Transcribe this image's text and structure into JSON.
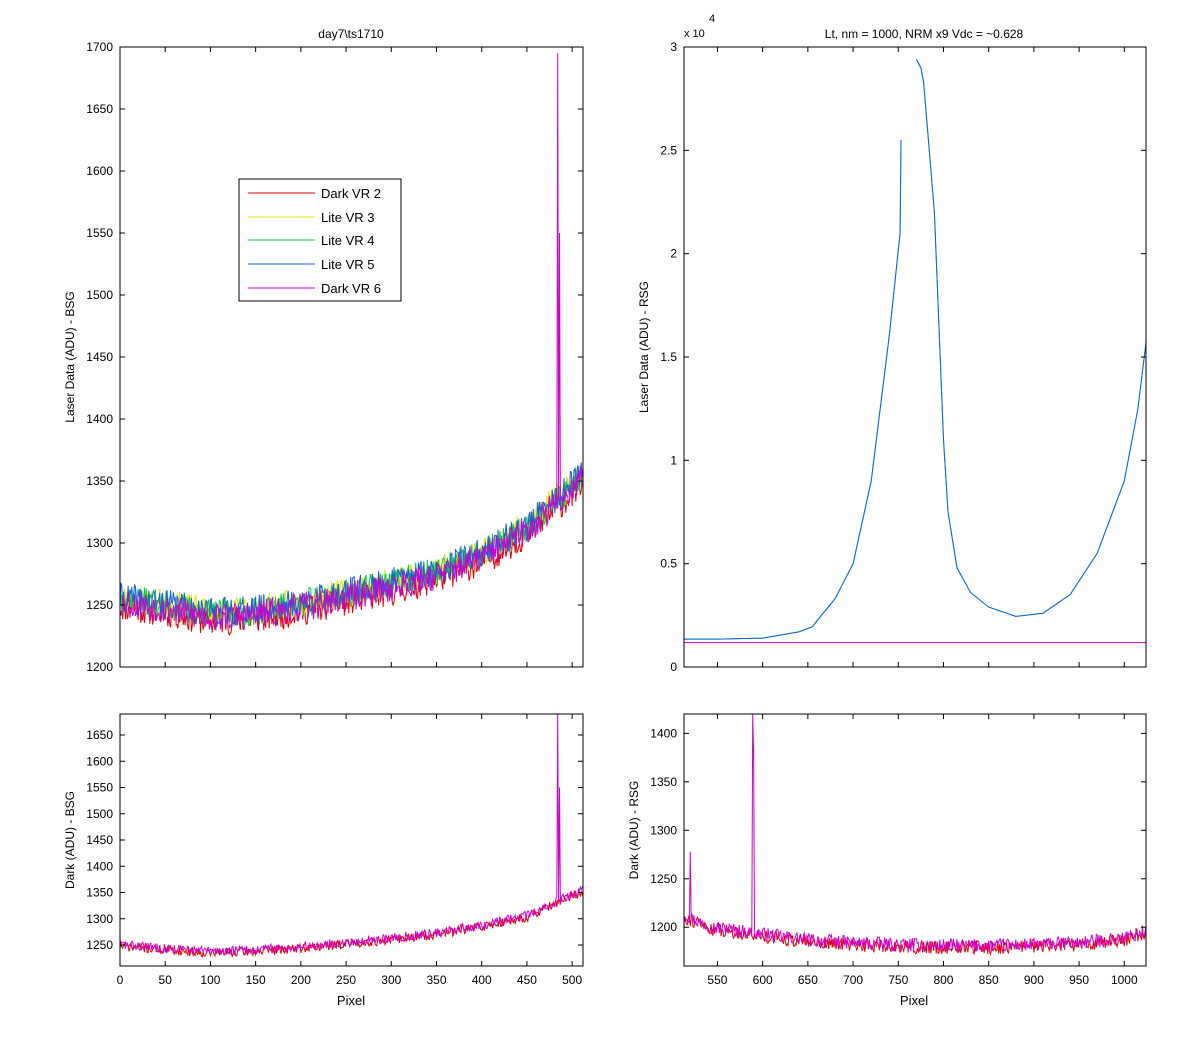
{
  "chart_data": [
    {
      "id": "top-left",
      "type": "line",
      "title": "day7\\ts1710",
      "xlabel": "",
      "ylabel": "Laser Data (ADU) - BSG",
      "xlim": [
        0,
        512
      ],
      "ylim": [
        1200,
        1700
      ],
      "xticks": [
        0,
        50,
        100,
        150,
        200,
        250,
        300,
        350,
        400,
        450,
        500
      ],
      "xticks_labeled": false,
      "yticks": [
        1200,
        1250,
        1300,
        1350,
        1400,
        1450,
        1500,
        1550,
        1600,
        1650,
        1700
      ],
      "exponent_label": "",
      "legend": {
        "placement": "upper-left-center",
        "entries": [
          "Dark VR 2",
          "Lite VR 3",
          "Lite VR 4",
          "Lite VR 5",
          "Dark VR 6"
        ]
      },
      "series": [
        {
          "name": "Dark VR 2",
          "color": "#e60000",
          "noise": 12,
          "offset": -3,
          "seed": 11,
          "points": [
            [
              0,
              1252
            ],
            [
              50,
              1247
            ],
            [
              100,
              1240
            ],
            [
              150,
              1242
            ],
            [
              200,
              1248
            ],
            [
              250,
              1256
            ],
            [
              300,
              1264
            ],
            [
              350,
              1274
            ],
            [
              400,
              1288
            ],
            [
              450,
              1310
            ],
            [
              500,
              1343
            ],
            [
              512,
              1354
            ]
          ]
        },
        {
          "name": "Lite VR 3",
          "color": "#e6e600",
          "noise": 12,
          "offset": 4,
          "seed": 23,
          "points": [
            [
              0,
              1252
            ],
            [
              50,
              1247
            ],
            [
              100,
              1240
            ],
            [
              150,
              1242
            ],
            [
              200,
              1248
            ],
            [
              250,
              1256
            ],
            [
              300,
              1264
            ],
            [
              350,
              1274
            ],
            [
              400,
              1288
            ],
            [
              450,
              1310
            ],
            [
              500,
              1343
            ],
            [
              512,
              1354
            ]
          ]
        },
        {
          "name": "Lite VR 4",
          "color": "#00d040",
          "noise": 12,
          "offset": 3,
          "seed": 37,
          "points": [
            [
              0,
              1252
            ],
            [
              50,
              1247
            ],
            [
              100,
              1240
            ],
            [
              150,
              1242
            ],
            [
              200,
              1248
            ],
            [
              250,
              1256
            ],
            [
              300,
              1264
            ],
            [
              350,
              1274
            ],
            [
              400,
              1288
            ],
            [
              450,
              1310
            ],
            [
              500,
              1343
            ],
            [
              512,
              1354
            ]
          ]
        },
        {
          "name": "Lite VR 5",
          "color": "#1560e0",
          "noise": 12,
          "offset": 4,
          "seed": 41,
          "points": [
            [
              0,
              1252
            ],
            [
              50,
              1247
            ],
            [
              100,
              1240
            ],
            [
              150,
              1242
            ],
            [
              200,
              1248
            ],
            [
              250,
              1256
            ],
            [
              300,
              1264
            ],
            [
              350,
              1274
            ],
            [
              400,
              1288
            ],
            [
              450,
              1310
            ],
            [
              500,
              1343
            ],
            [
              512,
              1354
            ]
          ]
        },
        {
          "name": "Dark VR 6",
          "color": "#d000d0",
          "noise": 12,
          "offset": 0,
          "seed": 53,
          "points": [
            [
              0,
              1252
            ],
            [
              50,
              1247
            ],
            [
              100,
              1240
            ],
            [
              150,
              1242
            ],
            [
              200,
              1248
            ],
            [
              250,
              1256
            ],
            [
              300,
              1264
            ],
            [
              350,
              1274
            ],
            [
              400,
              1288
            ],
            [
              450,
              1310
            ],
            [
              500,
              1343
            ],
            [
              512,
              1354
            ]
          ],
          "spikes": [
            [
              484,
              1695
            ],
            [
              486,
              1550
            ]
          ]
        }
      ]
    },
    {
      "id": "top-right",
      "type": "line",
      "title": "Lt, nm = 1000, NRM x9 Vdc = ~0.628",
      "xlabel": "",
      "ylabel": "Laser Data (ADU) - RSG",
      "xlim": [
        513,
        1024
      ],
      "ylim": [
        0,
        30000
      ],
      "xticks": [
        550,
        600,
        650,
        700,
        750,
        800,
        850,
        900,
        950,
        1000
      ],
      "xticks_labeled": false,
      "yticks": [
        0,
        5000,
        10000,
        15000,
        20000,
        25000,
        30000
      ],
      "ytick_labels": [
        "0",
        "0.5",
        "1",
        "1.5",
        "2",
        "2.5",
        "3"
      ],
      "exponent_label": "x 10",
      "exponent_power": "4",
      "series": [
        {
          "name": "Lite VR 4",
          "color": "#00d040",
          "noise": 0,
          "offset": 0,
          "seed": 5,
          "segments": [
            [
              [
                513,
                1350
              ],
              [
                550,
                1350
              ],
              [
                600,
                1400
              ],
              [
                640,
                1700
              ],
              [
                655,
                1950
              ],
              [
                665,
                2500
              ],
              [
                680,
                3300
              ],
              [
                700,
                5000
              ],
              [
                720,
                9000
              ],
              [
                740,
                16000
              ],
              [
                752,
                21000
              ],
              [
                753,
                25500
              ]
            ],
            [
              [
                770,
                29400
              ],
              [
                775,
                29000
              ],
              [
                778,
                28300
              ],
              [
                790,
                22000
              ],
              [
                800,
                11000
              ],
              [
                805,
                7500
              ],
              [
                815,
                4800
              ],
              [
                830,
                3600
              ],
              [
                850,
                2900
              ],
              [
                880,
                2450
              ],
              [
                910,
                2600
              ],
              [
                940,
                3500
              ],
              [
                970,
                5500
              ],
              [
                1000,
                9000
              ],
              [
                1015,
                12500
              ],
              [
                1024,
                15700
              ]
            ]
          ]
        },
        {
          "name": "Lite VR 5",
          "color": "#1560e0",
          "noise": 0,
          "offset": 0,
          "seed": 6,
          "segments": [
            [
              [
                513,
                1350
              ],
              [
                550,
                1350
              ],
              [
                600,
                1400
              ],
              [
                640,
                1700
              ],
              [
                655,
                1950
              ],
              [
                665,
                2500
              ],
              [
                680,
                3300
              ],
              [
                700,
                5000
              ],
              [
                720,
                9000
              ],
              [
                740,
                16000
              ],
              [
                752,
                21000
              ],
              [
                753,
                25500
              ]
            ],
            [
              [
                770,
                29400
              ],
              [
                775,
                29000
              ],
              [
                778,
                28300
              ],
              [
                790,
                22000
              ],
              [
                800,
                11000
              ],
              [
                805,
                7500
              ],
              [
                815,
                4800
              ],
              [
                830,
                3600
              ],
              [
                850,
                2900
              ],
              [
                880,
                2450
              ],
              [
                910,
                2600
              ],
              [
                940,
                3500
              ],
              [
                970,
                5500
              ],
              [
                1000,
                9000
              ],
              [
                1015,
                12500
              ],
              [
                1024,
                15700
              ]
            ]
          ]
        },
        {
          "name": "Dark VR 6",
          "color": "#d000d0",
          "noise": 0,
          "offset": 0,
          "seed": 7,
          "segments": [
            [
              [
                513,
                1180
              ],
              [
                1024,
                1180
              ]
            ]
          ]
        }
      ]
    },
    {
      "id": "bottom-left",
      "type": "line",
      "title": "",
      "xlabel": "Pixel",
      "ylabel": "Dark (ADU) - BSG",
      "xlim": [
        0,
        512
      ],
      "ylim": [
        1210,
        1690
      ],
      "xticks": [
        0,
        50,
        100,
        150,
        200,
        250,
        300,
        350,
        400,
        450,
        500
      ],
      "xticks_labeled": true,
      "yticks": [
        1250,
        1300,
        1350,
        1400,
        1450,
        1500,
        1550,
        1600,
        1650
      ],
      "exponent_label": "",
      "series": [
        {
          "name": "Dark VR 2",
          "color": "#e60000",
          "noise": 9,
          "offset": -2,
          "seed": 71,
          "points": [
            [
              0,
              1250
            ],
            [
              50,
              1243
            ],
            [
              100,
              1237
            ],
            [
              150,
              1240
            ],
            [
              200,
              1246
            ],
            [
              250,
              1254
            ],
            [
              300,
              1262
            ],
            [
              350,
              1272
            ],
            [
              400,
              1287
            ],
            [
              450,
              1305
            ],
            [
              500,
              1345
            ],
            [
              512,
              1356
            ]
          ]
        },
        {
          "name": "Dark VR 6",
          "color": "#d000d0",
          "noise": 9,
          "offset": 1,
          "seed": 83,
          "points": [
            [
              0,
              1250
            ],
            [
              50,
              1243
            ],
            [
              100,
              1237
            ],
            [
              150,
              1240
            ],
            [
              200,
              1246
            ],
            [
              250,
              1254
            ],
            [
              300,
              1262
            ],
            [
              350,
              1272
            ],
            [
              400,
              1287
            ],
            [
              450,
              1305
            ],
            [
              500,
              1345
            ],
            [
              512,
              1356
            ]
          ],
          "spikes": [
            [
              484,
              1690
            ],
            [
              486,
              1550
            ]
          ]
        }
      ]
    },
    {
      "id": "bottom-right",
      "type": "line",
      "title": "",
      "xlabel": "Pixel",
      "ylabel": "Dark (ADU) - RSG",
      "xlim": [
        513,
        1024
      ],
      "ylim": [
        1160,
        1420
      ],
      "xticks": [
        550,
        600,
        650,
        700,
        750,
        800,
        850,
        900,
        950,
        1000
      ],
      "xticks_labeled": true,
      "yticks": [
        1200,
        1250,
        1300,
        1350,
        1400
      ],
      "exponent_label": "",
      "series": [
        {
          "name": "Dark VR 2",
          "color": "#e60000",
          "noise": 7,
          "offset": -1,
          "seed": 91,
          "points": [
            [
              513,
              1212
            ],
            [
              540,
              1200
            ],
            [
              600,
              1192
            ],
            [
              650,
              1186
            ],
            [
              700,
              1183
            ],
            [
              750,
              1181
            ],
            [
              800,
              1180
            ],
            [
              850,
              1180
            ],
            [
              900,
              1181
            ],
            [
              950,
              1183
            ],
            [
              1000,
              1188
            ],
            [
              1024,
              1195
            ]
          ]
        },
        {
          "name": "Dark VR 6",
          "color": "#d000d0",
          "noise": 7,
          "offset": 1,
          "seed": 97,
          "points": [
            [
              513,
              1212
            ],
            [
              540,
              1200
            ],
            [
              600,
              1192
            ],
            [
              650,
              1186
            ],
            [
              700,
              1183
            ],
            [
              750,
              1181
            ],
            [
              800,
              1180
            ],
            [
              850,
              1180
            ],
            [
              900,
              1181
            ],
            [
              950,
              1183
            ],
            [
              1000,
              1188
            ],
            [
              1024,
              1195
            ]
          ],
          "spikes": [
            [
              520,
              1278
            ],
            [
              589,
              1420
            ],
            [
              590,
              1380
            ]
          ]
        }
      ]
    }
  ]
}
